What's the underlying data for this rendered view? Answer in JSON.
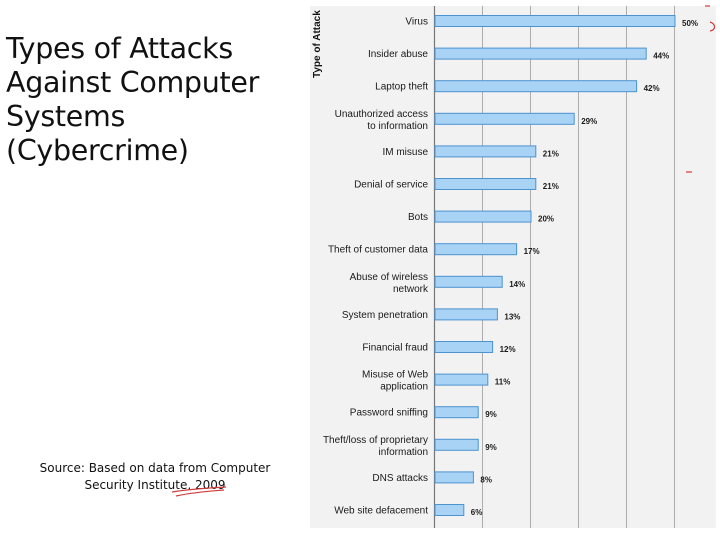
{
  "slide": {
    "title_lines": [
      "Types of Attacks",
      "Against Computer",
      "Systems (Cybercrime)"
    ],
    "source_lines": [
      "Source: Based on data from Computer",
      "Security Institute, 2009"
    ]
  },
  "chart_data": {
    "type": "bar",
    "orientation": "horizontal",
    "ylabel": "Type of Attack",
    "xlim": [
      0,
      55
    ],
    "value_format": "percent",
    "grid": true,
    "bar_color": "#a9d3f5",
    "bar_edge_color": "#4c93cf",
    "categories": [
      "Virus",
      "Insider abuse",
      "Laptop theft",
      "Unauthorized access to information",
      "IM misuse",
      "Denial of service",
      "Bots",
      "Theft of customer data",
      "Abuse of wireless network",
      "System penetration",
      "Financial fraud",
      "Misuse of Web application",
      "Password sniffing",
      "Theft/loss of proprietary information",
      "DNS attacks",
      "Web site defacement"
    ],
    "values": [
      50,
      44,
      42,
      29,
      21,
      21,
      20,
      17,
      14,
      13,
      12,
      11,
      9,
      9,
      8,
      6
    ],
    "value_labels": [
      "50%",
      "44%",
      "42%",
      "29%",
      "21%",
      "21%",
      "20%",
      "17%",
      "14%",
      "13%",
      "12%",
      "11%",
      "9%",
      "9%",
      "8%",
      "6%"
    ]
  }
}
